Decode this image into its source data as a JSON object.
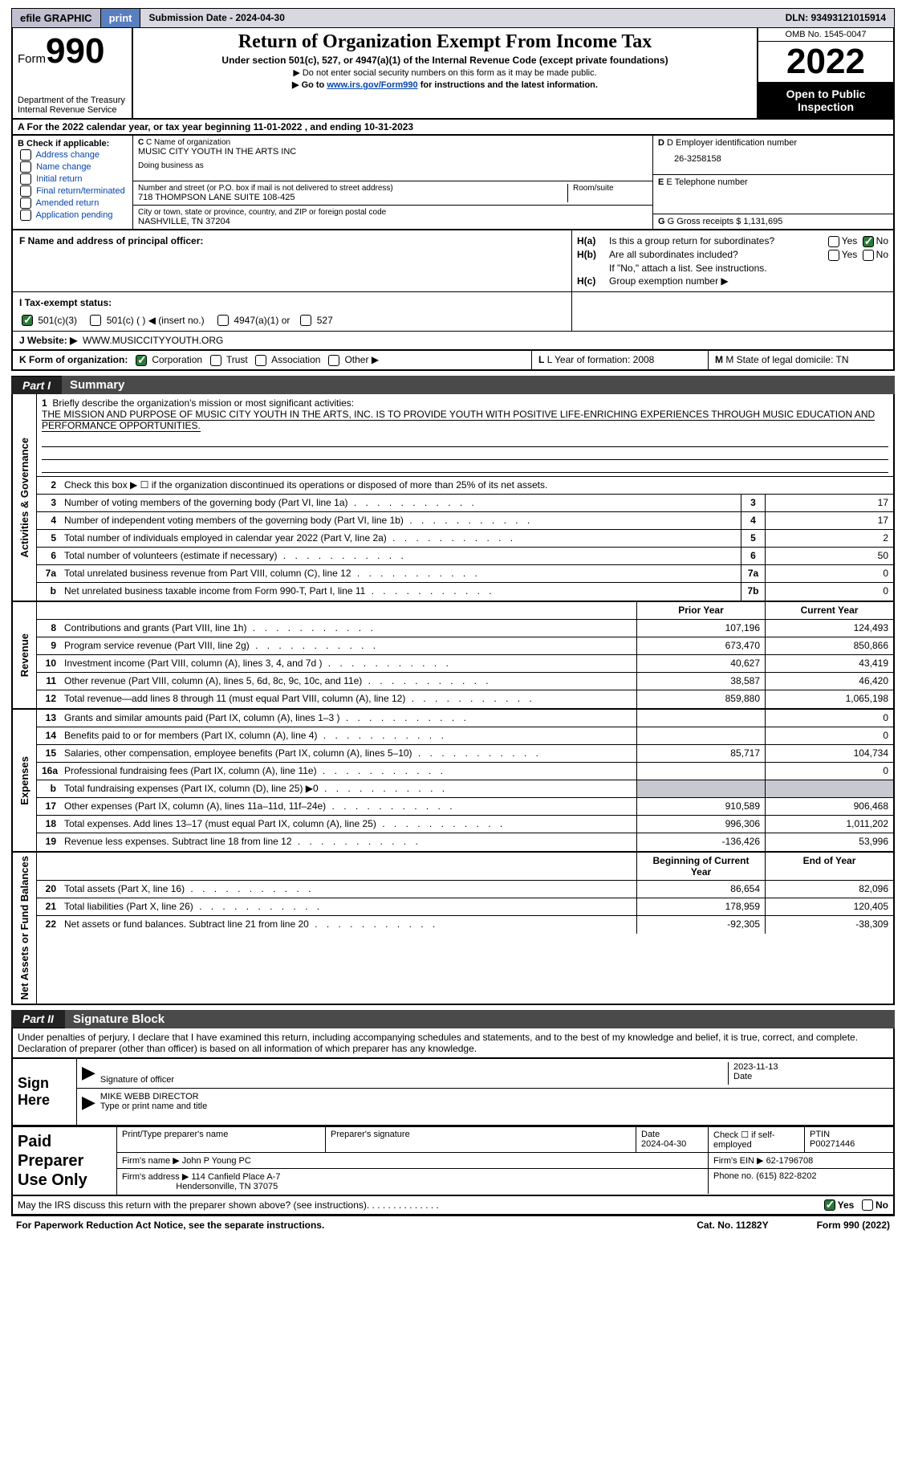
{
  "topbar": {
    "efile_label": "efile GRAPHIC",
    "print_label": "print",
    "submission_label": "Submission Date - 2024-04-30",
    "dln_label": "DLN: 93493121015914"
  },
  "header": {
    "form_label": "Form",
    "form_num": "990",
    "dept": "Department of the Treasury",
    "irs": "Internal Revenue Service",
    "title": "Return of Organization Exempt From Income Tax",
    "subtitle": "Under section 501(c), 527, or 4947(a)(1) of the Internal Revenue Code (except private foundations)",
    "note1": "▶ Do not enter social security numbers on this form as it may be made public.",
    "note2_pre": "▶ Go to ",
    "note2_link": "www.irs.gov/Form990",
    "note2_post": " for instructions and the latest information.",
    "omb": "OMB No. 1545-0047",
    "year": "2022",
    "open": "Open to Public Inspection"
  },
  "row_a": "A  For the 2022 calendar year, or tax year beginning 11-01-2022    , and ending 10-31-2023",
  "col_b": {
    "label": "B Check if applicable:",
    "opts": [
      "Address change",
      "Name change",
      "Initial return",
      "Final return/terminated",
      "Amended return",
      "Application pending"
    ]
  },
  "col_c": {
    "name_lab": "C Name of organization",
    "name_val": "MUSIC CITY YOUTH IN THE ARTS INC",
    "dba_lab": "Doing business as",
    "addr_lab": "Number and street (or P.O. box if mail is not delivered to street address)",
    "room_lab": "Room/suite",
    "addr_val": "718 THOMPSON LANE SUITE 108-425",
    "city_lab": "City or town, state or province, country, and ZIP or foreign postal code",
    "city_val": "NASHVILLE, TN  37204"
  },
  "col_de": {
    "d_lab": "D Employer identification number",
    "d_val": "26-3258158",
    "e_lab": "E Telephone number",
    "g_lab": "G Gross receipts $ 1,131,695"
  },
  "row_f": "F Name and address of principal officer:",
  "row_h": {
    "ha_lab": "H(a)",
    "ha_txt": "Is this a group return for subordinates?",
    "hb_lab": "H(b)",
    "hb_txt": "Are all subordinates included?",
    "hb_note": "If \"No,\" attach a list. See instructions.",
    "hc_lab": "H(c)",
    "hc_txt": "Group exemption number ▶",
    "yes": "Yes",
    "no": "No"
  },
  "row_i": {
    "lab": "I    Tax-exempt status:",
    "o1": "501(c)(3)",
    "o2": "501(c) (   ) ◀ (insert no.)",
    "o3": "4947(a)(1) or",
    "o4": "527"
  },
  "row_j": {
    "lab": "J    Website: ▶",
    "val": "WWW.MUSICCITYYOUTH.ORG"
  },
  "row_k": {
    "lab": "K Form of organization:",
    "o1": "Corporation",
    "o2": "Trust",
    "o3": "Association",
    "o4": "Other ▶",
    "l_lab": "L Year of formation: 2008",
    "m_lab": "M State of legal domicile: TN"
  },
  "part1": {
    "num": "Part I",
    "title": "Summary"
  },
  "summary": {
    "sec1": "Activities & Governance",
    "sec2": "Revenue",
    "sec3": "Expenses",
    "sec4": "Net Assets or Fund Balances",
    "r1_num": "1",
    "r1_txt": "Briefly describe the organization's mission or most significant activities:",
    "r1_val": "THE MISSION AND PURPOSE OF MUSIC CITY YOUTH IN THE ARTS, INC. IS TO PROVIDE YOUTH WITH POSITIVE LIFE-ENRICHING EXPERIENCES THROUGH MUSIC EDUCATION AND PERFORMANCE OPPORTUNITIES.",
    "r2_num": "2",
    "r2_txt": "Check this box ▶ ☐ if the organization discontinued its operations or disposed of more than 25% of its net assets.",
    "rows_a": [
      {
        "n": "3",
        "d": "Number of voting members of the governing body (Part VI, line 1a)",
        "b": "3",
        "v": "17"
      },
      {
        "n": "4",
        "d": "Number of independent voting members of the governing body (Part VI, line 1b)",
        "b": "4",
        "v": "17"
      },
      {
        "n": "5",
        "d": "Total number of individuals employed in calendar year 2022 (Part V, line 2a)",
        "b": "5",
        "v": "2"
      },
      {
        "n": "6",
        "d": "Total number of volunteers (estimate if necessary)",
        "b": "6",
        "v": "50"
      },
      {
        "n": "7a",
        "d": "Total unrelated business revenue from Part VIII, column (C), line 12",
        "b": "7a",
        "v": "0"
      },
      {
        "n": "b",
        "d": "Net unrelated business taxable income from Form 990-T, Part I, line 11",
        "b": "7b",
        "v": "0"
      }
    ],
    "py_hdr": "Prior Year",
    "cy_hdr": "Current Year",
    "rows_b": [
      {
        "n": "8",
        "d": "Contributions and grants (Part VIII, line 1h)",
        "p": "107,196",
        "c": "124,493"
      },
      {
        "n": "9",
        "d": "Program service revenue (Part VIII, line 2g)",
        "p": "673,470",
        "c": "850,866"
      },
      {
        "n": "10",
        "d": "Investment income (Part VIII, column (A), lines 3, 4, and 7d )",
        "p": "40,627",
        "c": "43,419"
      },
      {
        "n": "11",
        "d": "Other revenue (Part VIII, column (A), lines 5, 6d, 8c, 9c, 10c, and 11e)",
        "p": "38,587",
        "c": "46,420"
      },
      {
        "n": "12",
        "d": "Total revenue—add lines 8 through 11 (must equal Part VIII, column (A), line 12)",
        "p": "859,880",
        "c": "1,065,198"
      }
    ],
    "rows_c": [
      {
        "n": "13",
        "d": "Grants and similar amounts paid (Part IX, column (A), lines 1–3 )",
        "p": "",
        "c": "0"
      },
      {
        "n": "14",
        "d": "Benefits paid to or for members (Part IX, column (A), line 4)",
        "p": "",
        "c": "0"
      },
      {
        "n": "15",
        "d": "Salaries, other compensation, employee benefits (Part IX, column (A), lines 5–10)",
        "p": "85,717",
        "c": "104,734"
      },
      {
        "n": "16a",
        "d": "Professional fundraising fees (Part IX, column (A), line 11e)",
        "p": "",
        "c": "0"
      },
      {
        "n": "b",
        "d": "Total fundraising expenses (Part IX, column (D), line 25) ▶0",
        "p": "shade",
        "c": "shade"
      },
      {
        "n": "17",
        "d": "Other expenses (Part IX, column (A), lines 11a–11d, 11f–24e)",
        "p": "910,589",
        "c": "906,468"
      },
      {
        "n": "18",
        "d": "Total expenses. Add lines 13–17 (must equal Part IX, column (A), line 25)",
        "p": "996,306",
        "c": "1,011,202"
      },
      {
        "n": "19",
        "d": "Revenue less expenses. Subtract line 18 from line 12",
        "p": "-136,426",
        "c": "53,996"
      }
    ],
    "by_hdr": "Beginning of Current Year",
    "ey_hdr": "End of Year",
    "rows_d": [
      {
        "n": "20",
        "d": "Total assets (Part X, line 16)",
        "p": "86,654",
        "c": "82,096"
      },
      {
        "n": "21",
        "d": "Total liabilities (Part X, line 26)",
        "p": "178,959",
        "c": "120,405"
      },
      {
        "n": "22",
        "d": "Net assets or fund balances. Subtract line 21 from line 20",
        "p": "-92,305",
        "c": "-38,309"
      }
    ]
  },
  "part2": {
    "num": "Part II",
    "title": "Signature Block"
  },
  "sig": {
    "penalties": "Under penalties of perjury, I declare that I have examined this return, including accompanying schedules and statements, and to the best of my knowledge and belief, it is true, correct, and complete. Declaration of preparer (other than officer) is based on all information of which preparer has any knowledge.",
    "sign_here": "Sign Here",
    "sig_officer": "Signature of officer",
    "date": "Date",
    "date_val": "2023-11-13",
    "name_type": "Type or print name and title",
    "name_val": "MIKE WEBB  DIRECTOR"
  },
  "prep": {
    "label": "Paid Preparer Use Only",
    "pt_name": "Print/Type preparer's name",
    "sig": "Preparer's signature",
    "date_lab": "Date",
    "date_val": "2024-04-30",
    "check_lab": "Check ☐ if self-employed",
    "ptin_lab": "PTIN",
    "ptin_val": "P00271446",
    "firm_name_lab": "Firm's name    ▶",
    "firm_name_val": "John P Young PC",
    "firm_ein_lab": "Firm's EIN ▶",
    "firm_ein_val": "62-1796708",
    "firm_addr_lab": "Firm's address ▶",
    "firm_addr_val": "114 Canfield Place A-7",
    "firm_city": "Hendersonville, TN  37075",
    "phone_lab": "Phone no. (615) 822-8202"
  },
  "footer": {
    "q": "May the IRS discuss this return with the preparer shown above? (see instructions)",
    "yes": "Yes",
    "no": "No",
    "pra": "For Paperwork Reduction Act Notice, see the separate instructions.",
    "cat": "Cat. No. 11282Y",
    "form": "Form 990 (2022)"
  }
}
